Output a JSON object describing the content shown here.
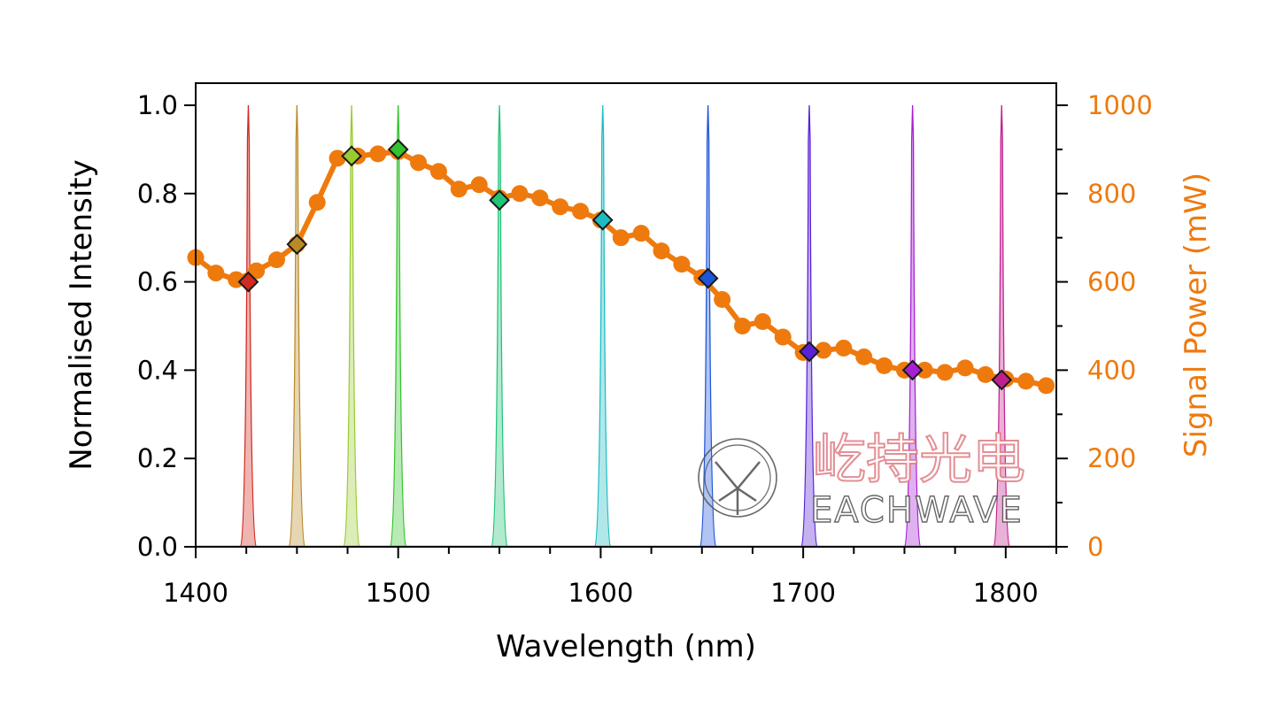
{
  "chart_data": {
    "type": "line",
    "title": "",
    "xlabel": "Wavelength (nm)",
    "ylabel_left": "Normalised Intensity",
    "ylabel_right": "Signal Power (mW)",
    "xlim": [
      1400,
      1825
    ],
    "ylim_left": [
      0,
      1.05
    ],
    "ylim_right": [
      0,
      1050
    ],
    "x_ticks": [
      1400,
      1500,
      1600,
      1700,
      1800
    ],
    "x_tick_labels": [
      "1400",
      "1500",
      "1600",
      "1700",
      "1800"
    ],
    "left_ticks": [
      0,
      0.2,
      0.4,
      0.6,
      0.8,
      1.0
    ],
    "left_tick_labels": [
      "0.0",
      "0.2",
      "0.4",
      "0.6",
      "0.8",
      "1.0"
    ],
    "right_ticks": [
      0,
      200,
      400,
      600,
      800,
      1000
    ],
    "right_tick_labels": [
      "0",
      "200",
      "400",
      "600",
      "800",
      "1000"
    ],
    "colors": {
      "power": "#ee7a0e",
      "right_axis": "#ee7a0e",
      "text": "#000000"
    },
    "signal_power_series": {
      "name": "Signal Power",
      "axis": "right",
      "unit": "mW",
      "x": [
        1400,
        1410,
        1420,
        1430,
        1440,
        1450,
        1460,
        1470,
        1480,
        1490,
        1500,
        1510,
        1520,
        1530,
        1540,
        1550,
        1560,
        1570,
        1580,
        1590,
        1600,
        1610,
        1620,
        1630,
        1640,
        1650,
        1660,
        1670,
        1680,
        1690,
        1700,
        1710,
        1720,
        1730,
        1740,
        1750,
        1760,
        1770,
        1780,
        1790,
        1800,
        1810,
        1820
      ],
      "y": [
        655,
        620,
        605,
        625,
        650,
        685,
        780,
        880,
        885,
        890,
        895,
        870,
        850,
        810,
        820,
        790,
        800,
        790,
        770,
        760,
        740,
        700,
        710,
        670,
        640,
        610,
        560,
        500,
        510,
        475,
        440,
        445,
        450,
        430,
        410,
        400,
        400,
        395,
        405,
        390,
        380,
        375,
        365
      ]
    },
    "spectral_peaks": [
      {
        "wavelength": 1426,
        "color": "#d12a20",
        "power": 600
      },
      {
        "wavelength": 1450,
        "color": "#b98a28",
        "power": 685
      },
      {
        "wavelength": 1477,
        "color": "#9acb30",
        "power": 885
      },
      {
        "wavelength": 1500,
        "color": "#33c22e",
        "power": 900
      },
      {
        "wavelength": 1550,
        "color": "#21c478",
        "power": 785
      },
      {
        "wavelength": 1601,
        "color": "#1cbcc2",
        "power": 740
      },
      {
        "wavelength": 1653,
        "color": "#1f55d9",
        "power": 608
      },
      {
        "wavelength": 1703,
        "color": "#5a22d6",
        "power": 442
      },
      {
        "wavelength": 1754,
        "color": "#a71fd3",
        "power": 400
      },
      {
        "wavelength": 1798,
        "color": "#c21f8e",
        "power": 378
      }
    ]
  },
  "watermark": {
    "cn": "屹持光电",
    "en": "EACHWAVE"
  }
}
